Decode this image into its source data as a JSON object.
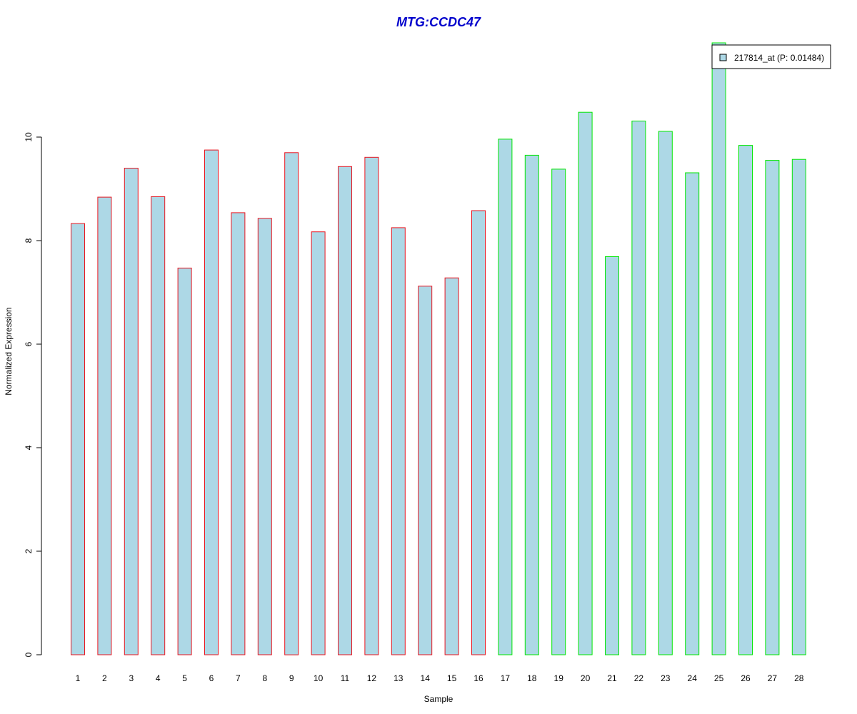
{
  "chart_data": {
    "type": "bar",
    "title": "MTG:CCDC47",
    "xlabel": "Sample",
    "ylabel": "Normalized Expression",
    "categories": [
      "1",
      "2",
      "3",
      "4",
      "5",
      "6",
      "7",
      "8",
      "9",
      "10",
      "11",
      "12",
      "13",
      "14",
      "15",
      "16",
      "17",
      "18",
      "19",
      "20",
      "21",
      "22",
      "23",
      "24",
      "25",
      "26",
      "27",
      "28"
    ],
    "series": [
      {
        "name": "217814_at (P: 0.01484)",
        "values": [
          8.33,
          8.84,
          9.4,
          8.85,
          7.47,
          9.75,
          8.54,
          8.43,
          9.7,
          8.17,
          9.43,
          9.61,
          8.25,
          7.12,
          7.28,
          8.58,
          9.96,
          9.65,
          9.38,
          10.48,
          7.69,
          10.31,
          10.11,
          9.31,
          11.82,
          9.84,
          9.55,
          9.57
        ]
      }
    ],
    "group_border_colors": [
      "#e8151f",
      "#e8151f",
      "#e8151f",
      "#e8151f",
      "#e8151f",
      "#e8151f",
      "#e8151f",
      "#e8151f",
      "#e8151f",
      "#e8151f",
      "#e8151f",
      "#e8151f",
      "#e8151f",
      "#e8151f",
      "#e8151f",
      "#e8151f",
      "#00e600",
      "#00e600",
      "#00e600",
      "#00e600",
      "#00e600",
      "#00e600",
      "#00e600",
      "#00e600",
      "#00e600",
      "#00e600",
      "#00e600",
      "#00e600"
    ],
    "y_ticks": [
      0,
      2,
      4,
      6,
      8,
      10
    ],
    "ylim": [
      0,
      11.82
    ],
    "grid": false,
    "legend_position": "top-right",
    "colors": {
      "bar_fill": "#add8e6",
      "title": "#0000cc",
      "axis": "#000000"
    }
  }
}
